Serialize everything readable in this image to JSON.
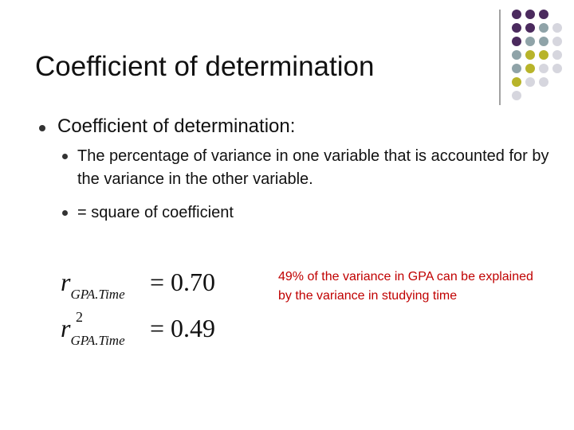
{
  "header": {
    "title": "Coefficient of determination"
  },
  "bullets": [
    {
      "text": "Coefficient of determination:",
      "sub_bullets": [
        "The percentage of variance in one variable that is accounted for by the variance in the other variable.",
        "= square of coefficient"
      ]
    }
  ],
  "equations": [
    {
      "symbol": "r",
      "subscript": "GPA.Time",
      "relation": "= 0.70"
    },
    {
      "symbol": "r",
      "superscript": "2",
      "subscript": "GPA.Time",
      "relation": "= 0.49"
    }
  ],
  "annotation": "49% of the variance in GPA can be explained by the variance in studying time"
}
